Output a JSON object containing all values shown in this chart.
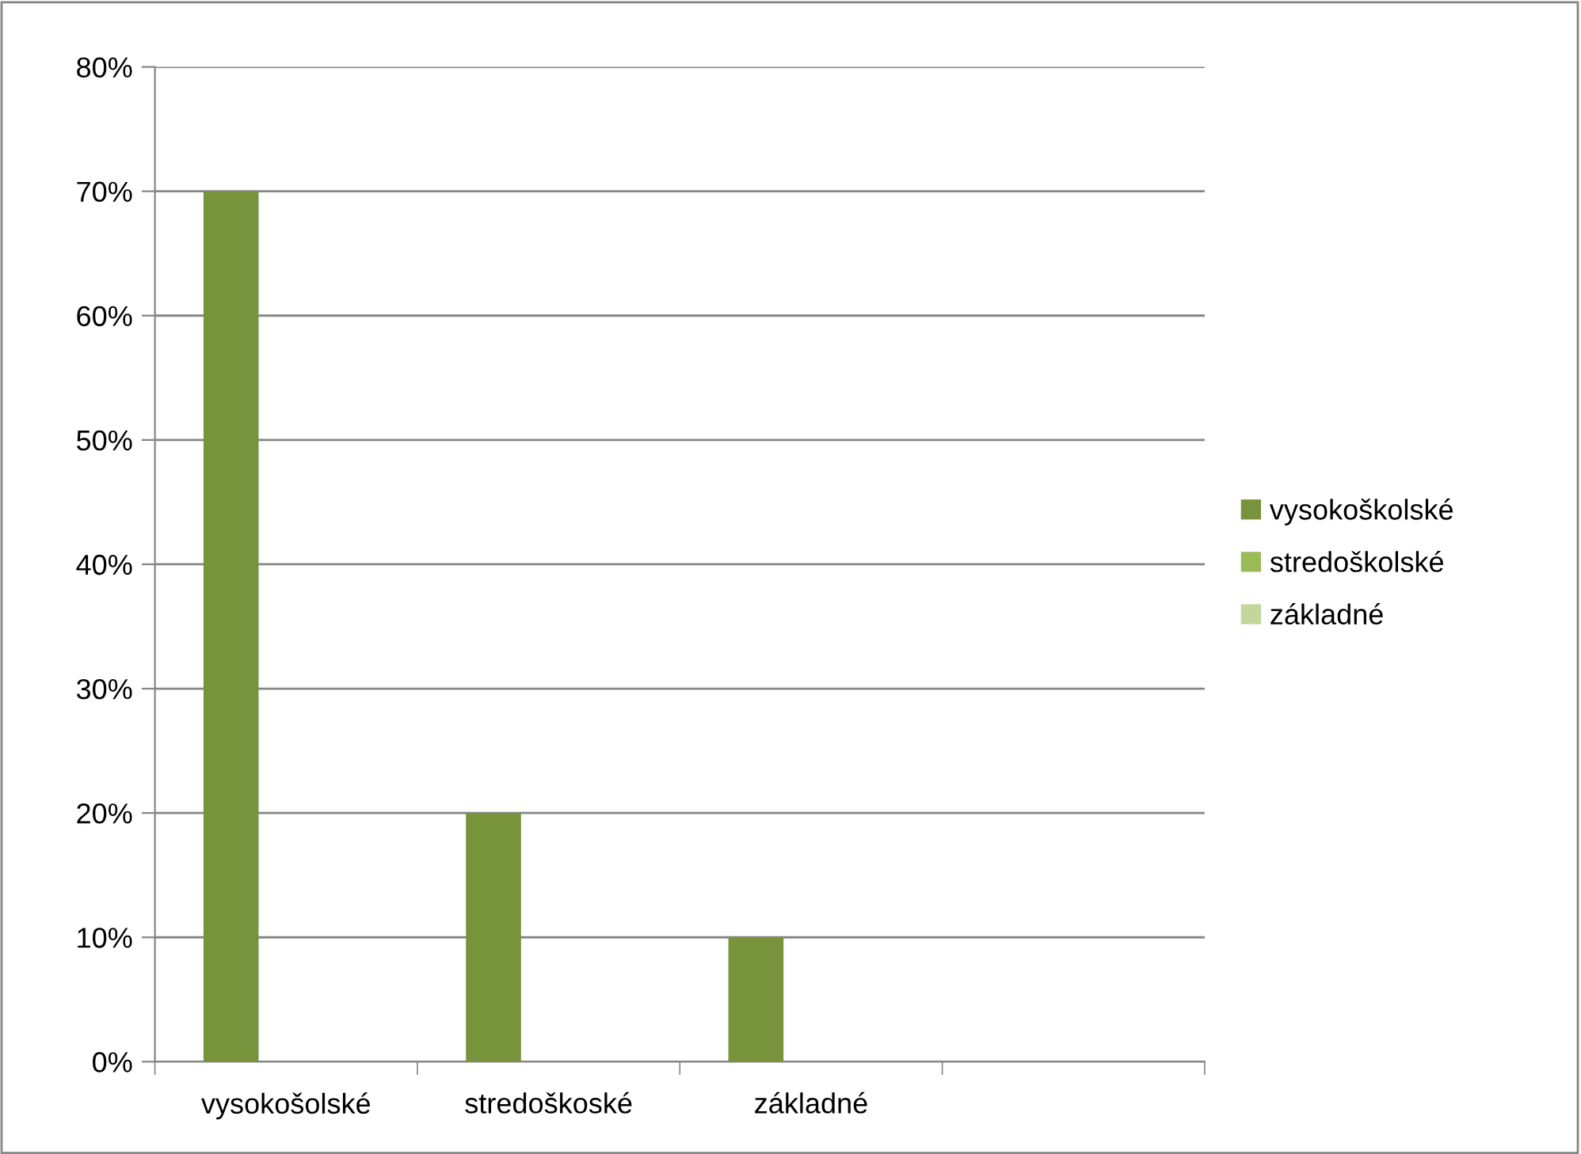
{
  "chart_data": {
    "type": "bar",
    "categories": [
      "vysokošolské",
      "stredoškoské",
      "základné",
      null
    ],
    "series": [
      {
        "name": "vysokoškolské",
        "color": "#77933c",
        "values": [
          70,
          20,
          10,
          null
        ]
      },
      {
        "name": "stredoškolské",
        "color": "#9bbb59",
        "values": [
          null,
          null,
          null,
          null
        ]
      },
      {
        "name": "základné",
        "color": "#c3d69b",
        "values": [
          null,
          null,
          null,
          null
        ]
      }
    ],
    "ylim": [
      0,
      80
    ],
    "yticks": [
      {
        "value": 0,
        "label": "0%"
      },
      {
        "value": 10,
        "label": "10%"
      },
      {
        "value": 20,
        "label": "20%"
      },
      {
        "value": 30,
        "label": "30%"
      },
      {
        "value": 40,
        "label": "40%"
      },
      {
        "value": 50,
        "label": "50%"
      },
      {
        "value": 60,
        "label": "60%"
      },
      {
        "value": 70,
        "label": "70%"
      },
      {
        "value": 80,
        "label": "80%"
      }
    ],
    "grid": "y",
    "legend": "right"
  }
}
